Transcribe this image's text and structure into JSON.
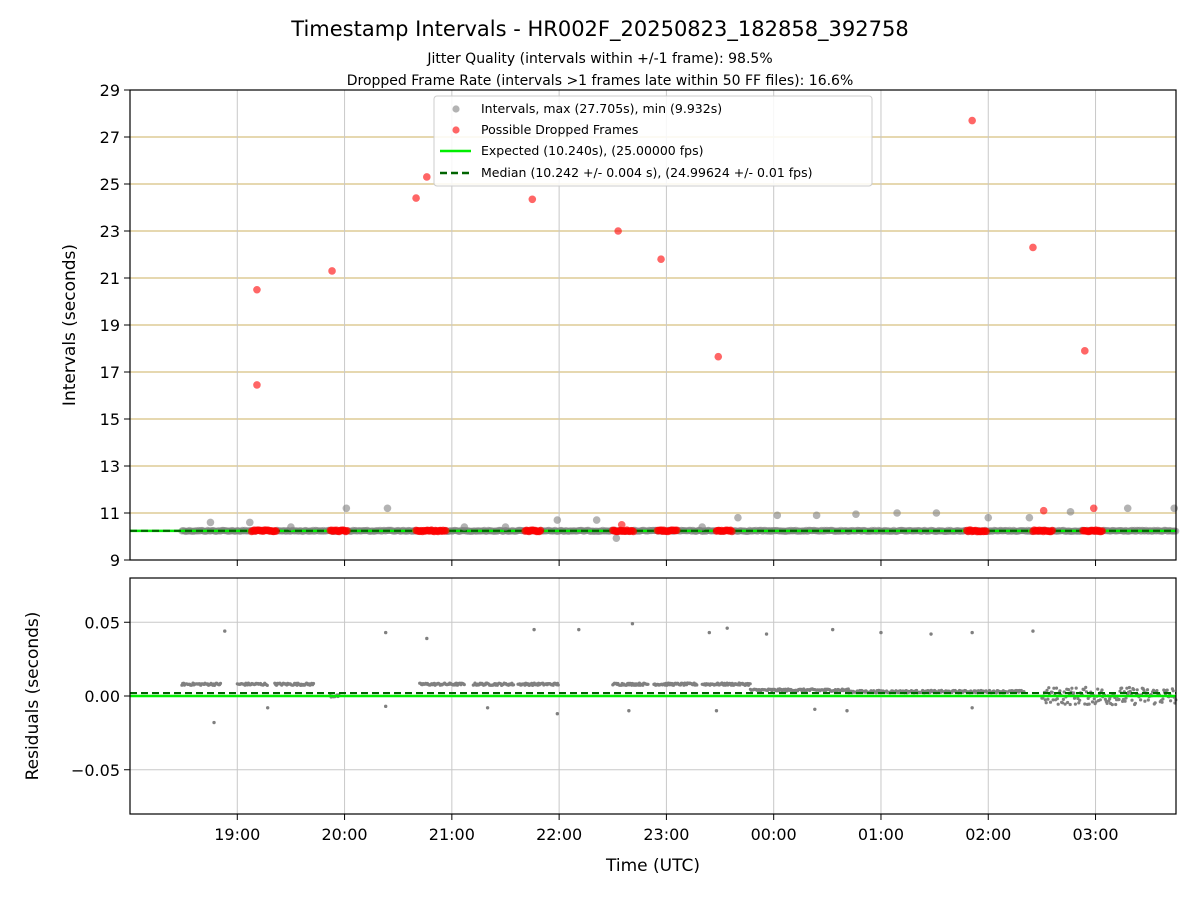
{
  "chart": {
    "title": "Timestamp Intervals - HR002F_20250823_182858_392758",
    "subtitle_jitter": "Jitter Quality (intervals within +/-1 frame): 98.5%",
    "subtitle_dropped": "Dropped Frame Rate (intervals >1 frames late within 50 FF files): 16.6%",
    "xlabel": "Time (UTC)",
    "colors": {
      "intervals": "#808080",
      "dropped": "#ff0000",
      "expected": "#00ee00",
      "median": "#006400",
      "hgrid": "#d8c080",
      "vgrid": "#c8c8c8"
    }
  },
  "chart_data": [
    {
      "type": "scatter",
      "panel": "top",
      "ylabel": "Intervals (seconds)",
      "ylim": [
        9,
        29
      ],
      "yticks": [
        "9",
        "11",
        "13",
        "15",
        "17",
        "19",
        "21",
        "23",
        "25",
        "27",
        "29"
      ],
      "x_range_hours": [
        18.0,
        27.75
      ],
      "xticks": [
        "19:00",
        "20:00",
        "21:00",
        "22:00",
        "23:00",
        "00:00",
        "01:00",
        "02:00",
        "03:00"
      ],
      "grid": "horizontal and vertical",
      "legend_position": "top-center",
      "legend": {
        "intervals": "Intervals, max (27.705s), min (9.932s)",
        "dropped": "Possible Dropped Frames",
        "expected": "Expected (10.240s), (25.00000 fps)",
        "median": "Median (10.242 +/- 0.004 s), (24.99624 +/- 0.01 fps)"
      },
      "expected_interval": 10.24,
      "median_interval": 10.242,
      "baseline_range": [
        "18:29",
        "03:45"
      ],
      "intervals_outliers": [
        {
          "t": "18:45",
          "y": 10.6
        },
        {
          "t": "19:07",
          "y": 10.6
        },
        {
          "t": "19:30",
          "y": 10.4
        },
        {
          "t": "20:01",
          "y": 11.2
        },
        {
          "t": "20:24",
          "y": 11.2
        },
        {
          "t": "21:07",
          "y": 10.4
        },
        {
          "t": "21:30",
          "y": 10.4
        },
        {
          "t": "21:59",
          "y": 10.7
        },
        {
          "t": "22:21",
          "y": 10.7
        },
        {
          "t": "22:32",
          "y": 9.93
        },
        {
          "t": "23:20",
          "y": 10.4
        },
        {
          "t": "23:40",
          "y": 10.8
        },
        {
          "t": "00:02",
          "y": 10.9
        },
        {
          "t": "00:24",
          "y": 10.9
        },
        {
          "t": "00:46",
          "y": 10.95
        },
        {
          "t": "01:09",
          "y": 11.0
        },
        {
          "t": "01:31",
          "y": 11.0
        },
        {
          "t": "02:00",
          "y": 10.8
        },
        {
          "t": "02:23",
          "y": 10.8
        },
        {
          "t": "02:46",
          "y": 11.05
        },
        {
          "t": "03:18",
          "y": 11.2
        },
        {
          "t": "03:44",
          "y": 11.2
        }
      ],
      "dropped_frames": [
        {
          "t": "19:11",
          "y": 20.5
        },
        {
          "t": "19:11",
          "y": 16.45
        },
        {
          "t": "19:53",
          "y": 21.3
        },
        {
          "t": "20:40",
          "y": 24.4
        },
        {
          "t": "20:46",
          "y": 25.3
        },
        {
          "t": "21:45",
          "y": 24.35
        },
        {
          "t": "22:33",
          "y": 23.0
        },
        {
          "t": "22:57",
          "y": 21.8
        },
        {
          "t": "23:29",
          "y": 17.65
        },
        {
          "t": "01:51",
          "y": 27.7
        },
        {
          "t": "02:25",
          "y": 22.3
        },
        {
          "t": "02:54",
          "y": 17.9
        },
        {
          "t": "02:31",
          "y": 11.1
        },
        {
          "t": "02:59",
          "y": 11.2
        },
        {
          "t": "22:35",
          "y": 10.5
        }
      ],
      "dropped_clusters": [
        {
          "start": "19:08",
          "end": "19:22"
        },
        {
          "start": "19:52",
          "end": "20:02"
        },
        {
          "start": "20:40",
          "end": "20:57"
        },
        {
          "start": "21:41",
          "end": "21:50"
        },
        {
          "start": "22:30",
          "end": "22:42"
        },
        {
          "start": "22:55",
          "end": "23:06"
        },
        {
          "start": "23:28",
          "end": "23:37"
        },
        {
          "start": "01:48",
          "end": "01:59"
        },
        {
          "start": "02:25",
          "end": "02:36"
        },
        {
          "start": "02:53",
          "end": "03:04"
        }
      ]
    },
    {
      "type": "scatter",
      "panel": "bottom",
      "ylabel": "Residuals (seconds)",
      "ylim": [
        -0.08,
        0.08
      ],
      "yticks": [
        "−0.05",
        "0.00",
        "0.05"
      ],
      "grid": "horizontal and vertical",
      "expected_residual": 0.0,
      "median_residual": 0.002,
      "residual_bands": [
        {
          "start": "18:29",
          "end": "18:51",
          "y": 0.008
        },
        {
          "start": "19:00",
          "end": "19:17",
          "y": 0.008
        },
        {
          "start": "19:21",
          "end": "19:43",
          "y": 0.008
        },
        {
          "start": "19:52",
          "end": "19:57",
          "y": 0.0
        },
        {
          "start": "20:42",
          "end": "21:07",
          "y": 0.008
        },
        {
          "start": "21:12",
          "end": "21:35",
          "y": 0.008
        },
        {
          "start": "21:37",
          "end": "22:00",
          "y": 0.008
        },
        {
          "start": "22:30",
          "end": "22:50",
          "y": 0.008
        },
        {
          "start": "22:53",
          "end": "23:17",
          "y": 0.008
        },
        {
          "start": "23:20",
          "end": "23:47",
          "y": 0.008
        },
        {
          "start": "23:47",
          "end": "00:42",
          "y": 0.004
        },
        {
          "start": "00:42",
          "end": "02:20",
          "y": 0.003
        },
        {
          "start": "02:30",
          "end": "03:45",
          "y": 0.0
        }
      ],
      "residual_outliers": [
        {
          "t": "18:53",
          "y": 0.044
        },
        {
          "t": "18:47",
          "y": -0.018
        },
        {
          "t": "20:23",
          "y": 0.043
        },
        {
          "t": "20:46",
          "y": 0.039
        },
        {
          "t": "21:46",
          "y": 0.045
        },
        {
          "t": "22:11",
          "y": 0.045
        },
        {
          "t": "22:41",
          "y": 0.049
        },
        {
          "t": "23:24",
          "y": 0.043
        },
        {
          "t": "23:34",
          "y": 0.046
        },
        {
          "t": "23:56",
          "y": 0.042
        },
        {
          "t": "00:33",
          "y": 0.045
        },
        {
          "t": "01:00",
          "y": 0.043
        },
        {
          "t": "01:28",
          "y": 0.042
        },
        {
          "t": "01:51",
          "y": 0.043
        },
        {
          "t": "02:25",
          "y": 0.044
        },
        {
          "t": "21:59",
          "y": -0.012
        },
        {
          "t": "22:39",
          "y": -0.01
        },
        {
          "t": "00:41",
          "y": -0.01
        },
        {
          "t": "00:23",
          "y": -0.009
        },
        {
          "t": "01:51",
          "y": -0.008
        },
        {
          "t": "23:28",
          "y": -0.01
        },
        {
          "t": "20:23",
          "y": -0.007
        },
        {
          "t": "19:17",
          "y": -0.008
        },
        {
          "t": "21:20",
          "y": -0.008
        }
      ]
    }
  ]
}
